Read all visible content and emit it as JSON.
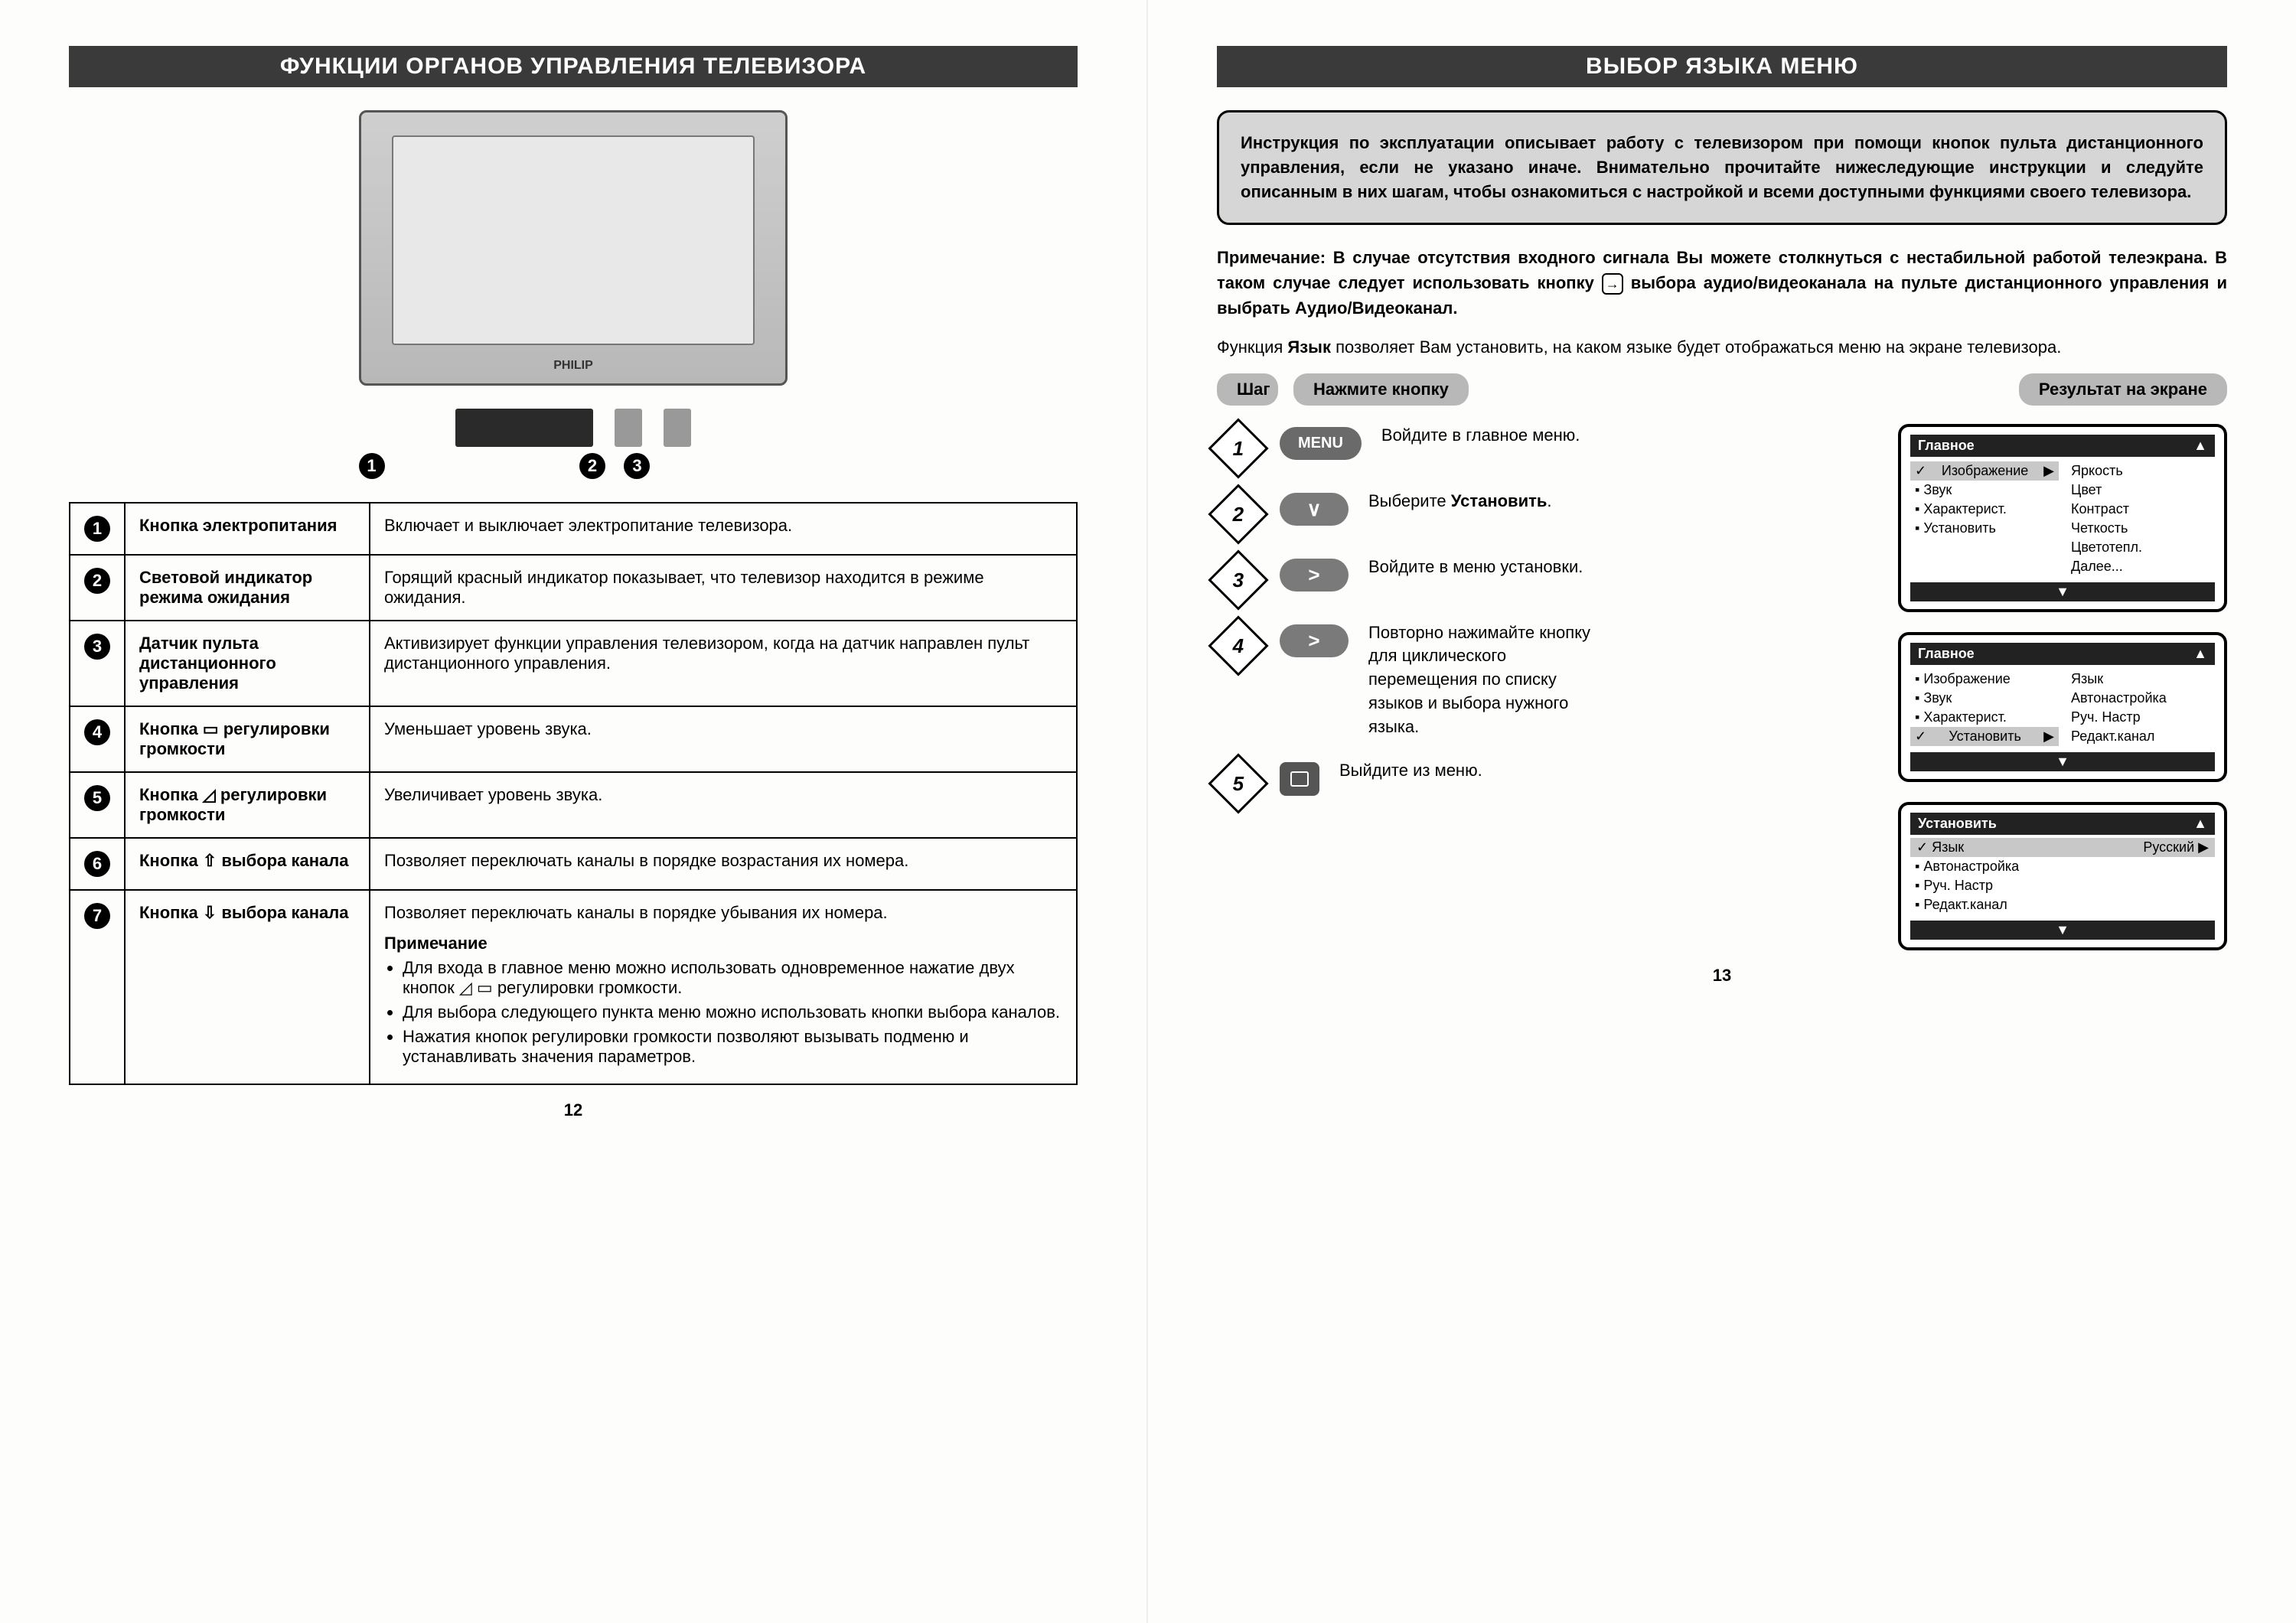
{
  "left": {
    "header": "ФУНКЦИИ ОРГАНОВ УПРАВЛЕНИЯ ТЕЛЕВИЗОРА",
    "tv_brand": "PHILIP",
    "callouts": [
      "1",
      "2",
      "3"
    ],
    "rows": [
      {
        "n": "1",
        "name": "Кнопка электропитания",
        "desc": "Включает и выключает электропитание телевизора."
      },
      {
        "n": "2",
        "name": "Световой индикатор режима ожидания",
        "desc": "Горящий красный индикатор показывает, что телевизор находится в режиме ожидания."
      },
      {
        "n": "3",
        "name": "Датчик пульта дистанционного управления",
        "desc": "Активизирует функции управления телевизором, когда на датчик направлен пульт дистанционного управления."
      },
      {
        "n": "4",
        "name": "Кнопка ▭ регулировки громкости",
        "desc": "Уменьшает уровень звука."
      },
      {
        "n": "5",
        "name": "Кнопка ◿ регулировки громкости",
        "desc": "Увеличивает уровень звука."
      },
      {
        "n": "6",
        "name": "Кнопка ⇧ выбора канала",
        "desc": "Позволяет переключать каналы в порядке возрастания их номера."
      },
      {
        "n": "7",
        "name": "Кнопка ⇩ выбора канала",
        "desc": "Позволяет переключать каналы в порядке убывания их номера."
      }
    ],
    "note_head": "Примечание",
    "notes": [
      "Для входа в главное меню можно использовать одновременное нажатие двух кнопок ◿ ▭ регулировки громкости.",
      "Для выбора следующего пункта меню можно использовать кнопки выбора каналов.",
      "Нажатия кнопок регулировки громкости позволяют вызывать подменю и устанавливать значения параметров."
    ],
    "page_num": "12"
  },
  "right": {
    "header": "ВЫБОР ЯЗЫКА МЕНЮ",
    "intro": "Инструкция по эксплуатации описывает работу с телевизором при помощи кнопок пульта дистанционного управления, если не указано иначе. Внимательно прочитайте нижеследующие инструкции и следуйте описанным в них шагам, чтобы ознакомиться с настройкой и всеми доступными функциями своего телевизора.",
    "warn_a": "Примечание: В случае отсутствия входного сигнала Вы можете столкнуться с нестабильной работой телеэкрана. В таком случае следует использовать кнопку ",
    "warn_b": " выбора аудио/видеоканала на пульте дистанционного управления и выбрать Аудио/Видеоканал.",
    "lang_text_a": "Функция ",
    "lang_text_bold": "Язык",
    "lang_text_b": " позволяет Вам установить, на каком языке будет отображаться меню на экране телевизора.",
    "col_step": "Шаг",
    "col_press": "Нажмите кнопку",
    "col_result": "Результат на экране",
    "steps": [
      {
        "n": "1",
        "btn": "MENU",
        "btn_type": "menu",
        "text": "Войдите в главное меню."
      },
      {
        "n": "2",
        "btn": "∨",
        "btn_type": "arrow",
        "text_a": "Выберите ",
        "text_bold": "Установить",
        "text_b": "."
      },
      {
        "n": "3",
        "btn": ">",
        "btn_type": "arrow",
        "text": "Войдите в меню установки."
      },
      {
        "n": "4",
        "btn": ">",
        "btn_type": "arrow",
        "text": "Повторно нажимайте кнопку для циклического перемещения по списку языков и выбора нужного языка."
      },
      {
        "n": "5",
        "btn": "□",
        "btn_type": "square",
        "text": "Выйдите из меню."
      }
    ],
    "osd1": {
      "title": "Главное",
      "arrow": "▲",
      "left": [
        {
          "t": "Изображение",
          "sel": true,
          "arrow": "▶"
        },
        {
          "t": "Звук"
        },
        {
          "t": "Характерист."
        },
        {
          "t": "Установить"
        }
      ],
      "right": [
        "Яркость",
        "Цвет",
        "Контраст",
        "Четкость",
        "Цветотепл.",
        "Далее..."
      ]
    },
    "osd2": {
      "title": "Главное",
      "arrow": "▲",
      "left": [
        {
          "t": "Изображение"
        },
        {
          "t": "Звук"
        },
        {
          "t": "Характерист."
        },
        {
          "t": "Установить",
          "sel": true,
          "arrow": "▶"
        }
      ],
      "right": [
        "Язык",
        "Автонастройка",
        "Руч. Настр",
        "Редакт.канал"
      ]
    },
    "osd3": {
      "title": "Установить",
      "arrow": "▲",
      "sel_row": {
        "l": "Язык",
        "r": "Русский ▶"
      },
      "items": [
        "Автонастройка",
        "Руч. Настр",
        "Редакт.канал"
      ]
    },
    "page_num": "13"
  }
}
